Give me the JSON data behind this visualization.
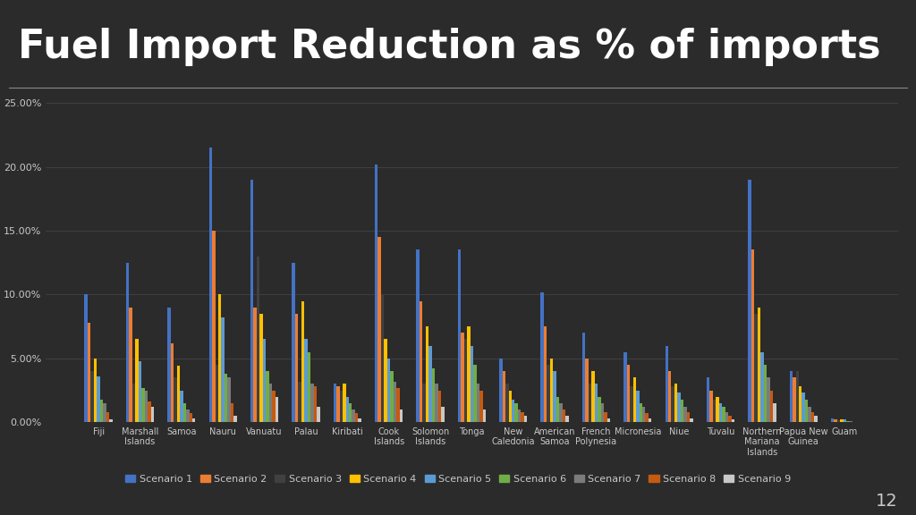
{
  "title": "Fuel Import Reduction as % of imports",
  "background_color": "#2b2b2b",
  "chart_bg_color": "#333333",
  "title_color": "#ffffff",
  "title_fontsize": 32,
  "categories": [
    "Fiji",
    "Marshall\nIslands",
    "Samoa",
    "Nauru",
    "Vanuatu",
    "Palau",
    "Kiribati",
    "Cook\nIslands",
    "Solomon\nIslands",
    "Tonga",
    "New\nCaledonia",
    "American\nSamoa",
    "French\nPolynesia",
    "Micronesia",
    "Niue",
    "Tuvalu",
    "Northern\nMariana\nIslands",
    "Papua New\nGuinea",
    "Guam"
  ],
  "scenarios": [
    "Scenario 1",
    "Scenario 2",
    "Scenario 3",
    "Scenario 4",
    "Scenario 5",
    "Scenario 6",
    "Scenario 7",
    "Scenario 8",
    "Scenario 9"
  ],
  "scenario_colors": [
    "#4472C4",
    "#ED7D31",
    "#404040",
    "#FFC000",
    "#5B9BD5",
    "#70AD47",
    "#7B7B7B",
    "#C55A11",
    "#C8C8C8"
  ],
  "data": [
    [
      0.1,
      0.078,
      0.04,
      0.05,
      0.036,
      0.018,
      0.015,
      0.008,
      0.002
    ],
    [
      0.125,
      0.09,
      0.03,
      0.065,
      0.048,
      0.027,
      0.025,
      0.016,
      0.012
    ],
    [
      0.09,
      0.062,
      0.035,
      0.044,
      0.025,
      0.015,
      0.01,
      0.007,
      0.003
    ],
    [
      0.215,
      0.15,
      0.045,
      0.1,
      0.082,
      0.038,
      0.035,
      0.015,
      0.005
    ],
    [
      0.19,
      0.09,
      0.13,
      0.085,
      0.065,
      0.04,
      0.03,
      0.025,
      0.02
    ],
    [
      0.125,
      0.085,
      0.032,
      0.095,
      0.065,
      0.055,
      0.03,
      0.028,
      0.012
    ],
    [
      0.03,
      0.028,
      0.025,
      0.03,
      0.02,
      0.015,
      0.01,
      0.007,
      0.003
    ],
    [
      0.202,
      0.145,
      0.1,
      0.065,
      0.05,
      0.04,
      0.032,
      0.027,
      0.01
    ],
    [
      0.135,
      0.095,
      0.03,
      0.075,
      0.06,
      0.042,
      0.03,
      0.025,
      0.012
    ],
    [
      0.135,
      0.07,
      0.065,
      0.075,
      0.06,
      0.045,
      0.03,
      0.025,
      0.01
    ],
    [
      0.05,
      0.04,
      0.03,
      0.025,
      0.018,
      0.015,
      0.01,
      0.008,
      0.005
    ],
    [
      0.102,
      0.075,
      0.045,
      0.05,
      0.04,
      0.02,
      0.015,
      0.01,
      0.005
    ],
    [
      0.07,
      0.05,
      0.03,
      0.04,
      0.03,
      0.02,
      0.015,
      0.008,
      0.003
    ],
    [
      0.055,
      0.045,
      0.028,
      0.035,
      0.025,
      0.015,
      0.012,
      0.007,
      0.003
    ],
    [
      0.06,
      0.04,
      0.028,
      0.03,
      0.023,
      0.018,
      0.012,
      0.008,
      0.003
    ],
    [
      0.035,
      0.025,
      0.018,
      0.02,
      0.015,
      0.012,
      0.008,
      0.005,
      0.002
    ],
    [
      0.19,
      0.135,
      0.085,
      0.09,
      0.055,
      0.045,
      0.035,
      0.025,
      0.015
    ],
    [
      0.04,
      0.035,
      0.04,
      0.028,
      0.023,
      0.018,
      0.012,
      0.008,
      0.005
    ],
    [
      0.003,
      0.002,
      0.0015,
      0.0025,
      0.002,
      0.001,
      0.001,
      0.0005,
      0.0005
    ]
  ],
  "ylim": [
    0.0,
    0.25
  ],
  "ytick_labels": [
    "0.00%",
    "5.00%",
    "10.00%",
    "15.00%",
    "20.00%",
    "25.00%"
  ],
  "ytick_values": [
    0.0,
    0.05,
    0.1,
    0.15,
    0.2,
    0.25
  ],
  "grid_color": "#666666",
  "text_color": "#c8c8c8",
  "tick_fontsize": 8,
  "legend_fontsize": 8,
  "page_number": "12"
}
